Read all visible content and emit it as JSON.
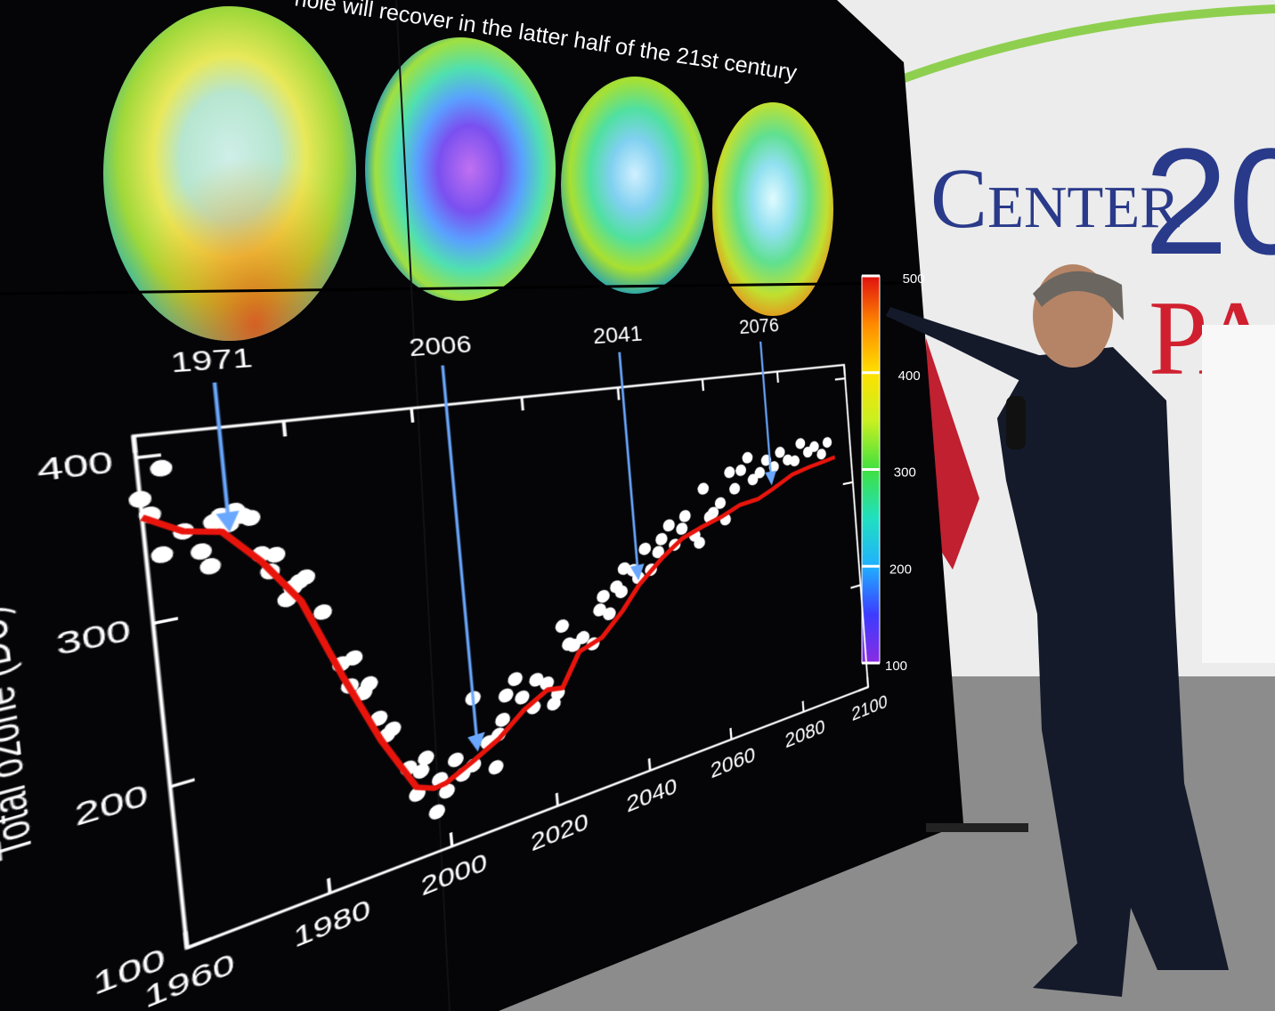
{
  "chart_data": {
    "type": "scatter",
    "title": "hole will recover in the latter half of the 21st century",
    "y_label": "Total ozone (DU)",
    "xlim": [
      1960,
      2100
    ],
    "ylim": [
      100,
      413
    ],
    "xticks": [
      1960,
      1980,
      2000,
      2020,
      2040,
      2060,
      2080,
      2100
    ],
    "yticks": [
      100,
      200,
      300,
      400
    ],
    "highlight_years": [
      1971,
      2006,
      2041,
      2076
    ],
    "points": {
      "color": "#ffffff",
      "x": [
        1960,
        1961,
        1962,
        1963,
        1965,
        1967,
        1968,
        1969,
        1970,
        1971,
        1972,
        1973,
        1974,
        1975,
        1976,
        1977,
        1978,
        1979,
        1980,
        1981,
        1983,
        1985,
        1986,
        1987,
        1988,
        1989,
        1990,
        1991,
        1992,
        1994,
        1995,
        1996,
        1997,
        1998,
        1999,
        2000,
        2002,
        2003,
        2005,
        2006,
        2008,
        2009,
        2010,
        2011,
        2012,
        2014,
        2015,
        2017,
        2018,
        2020,
        2021,
        2022,
        2024,
        2025,
        2026,
        2028,
        2030,
        2032,
        2033,
        2034,
        2036,
        2037,
        2038,
        2040,
        2041,
        2043,
        2044,
        2046,
        2047,
        2049,
        2050,
        2052,
        2053,
        2055,
        2056,
        2058,
        2059,
        2060,
        2062,
        2063,
        2065,
        2066,
        2068,
        2070,
        2071,
        2073,
        2075,
        2077,
        2079,
        2081,
        2083,
        2085,
        2087,
        2089,
        2091,
        2093
      ],
      "values": [
        375,
        365,
        340,
        392,
        352,
        338,
        328,
        355,
        358,
        352,
        360,
        356,
        354,
        330,
        318,
        328,
        298,
        305,
        308,
        310,
        285,
        248,
        232,
        250,
        225,
        230,
        205,
        192,
        195,
        165,
        145,
        160,
        168,
        128,
        150,
        140,
        160,
        148,
        152,
        200,
        165,
        145,
        168,
        178,
        195,
        205,
        190,
        180,
        200,
        195,
        178,
        185,
        235,
        220,
        218,
        222,
        215,
        240,
        250,
        235,
        255,
        250,
        268,
        265,
        258,
        280,
        262,
        275,
        285,
        295,
        278,
        290,
        300,
        282,
        275,
        320,
        295,
        298,
        305,
        290,
        330,
        315,
        330,
        340,
        320,
        325,
        335,
        328,
        340,
        332,
        330,
        345,
        336,
        340,
        332,
        342
      ]
    },
    "fit": {
      "color": "#e8140c",
      "x": [
        1960,
        1965,
        1970,
        1975,
        1980,
        1985,
        1990,
        1995,
        1998,
        2000,
        2005,
        2010,
        2015,
        2020,
        2023,
        2027,
        2032,
        2037,
        2041,
        2047,
        2052,
        2057,
        2062,
        2067,
        2072,
        2076,
        2082,
        2087,
        2092,
        2095
      ],
      "values": [
        364,
        352,
        348,
        325,
        295,
        240,
        190,
        150,
        145,
        146,
        155,
        165,
        180,
        190,
        188,
        212,
        218,
        235,
        252,
        270,
        282,
        288,
        293,
        300,
        302,
        308,
        318,
        322,
        325,
        327
      ]
    },
    "colorbar": {
      "lim": [
        100,
        500
      ],
      "ticks": [
        100,
        200,
        300,
        400,
        500
      ],
      "colors": [
        "#8a2be2",
        "#3c3cff",
        "#20b0ff",
        "#20e0c0",
        "#40e040",
        "#c8f020",
        "#ffe000",
        "#ff8a00",
        "#e01010"
      ]
    }
  },
  "backdrop": {
    "banner": "Center",
    "year": "20",
    "city": "PA"
  }
}
